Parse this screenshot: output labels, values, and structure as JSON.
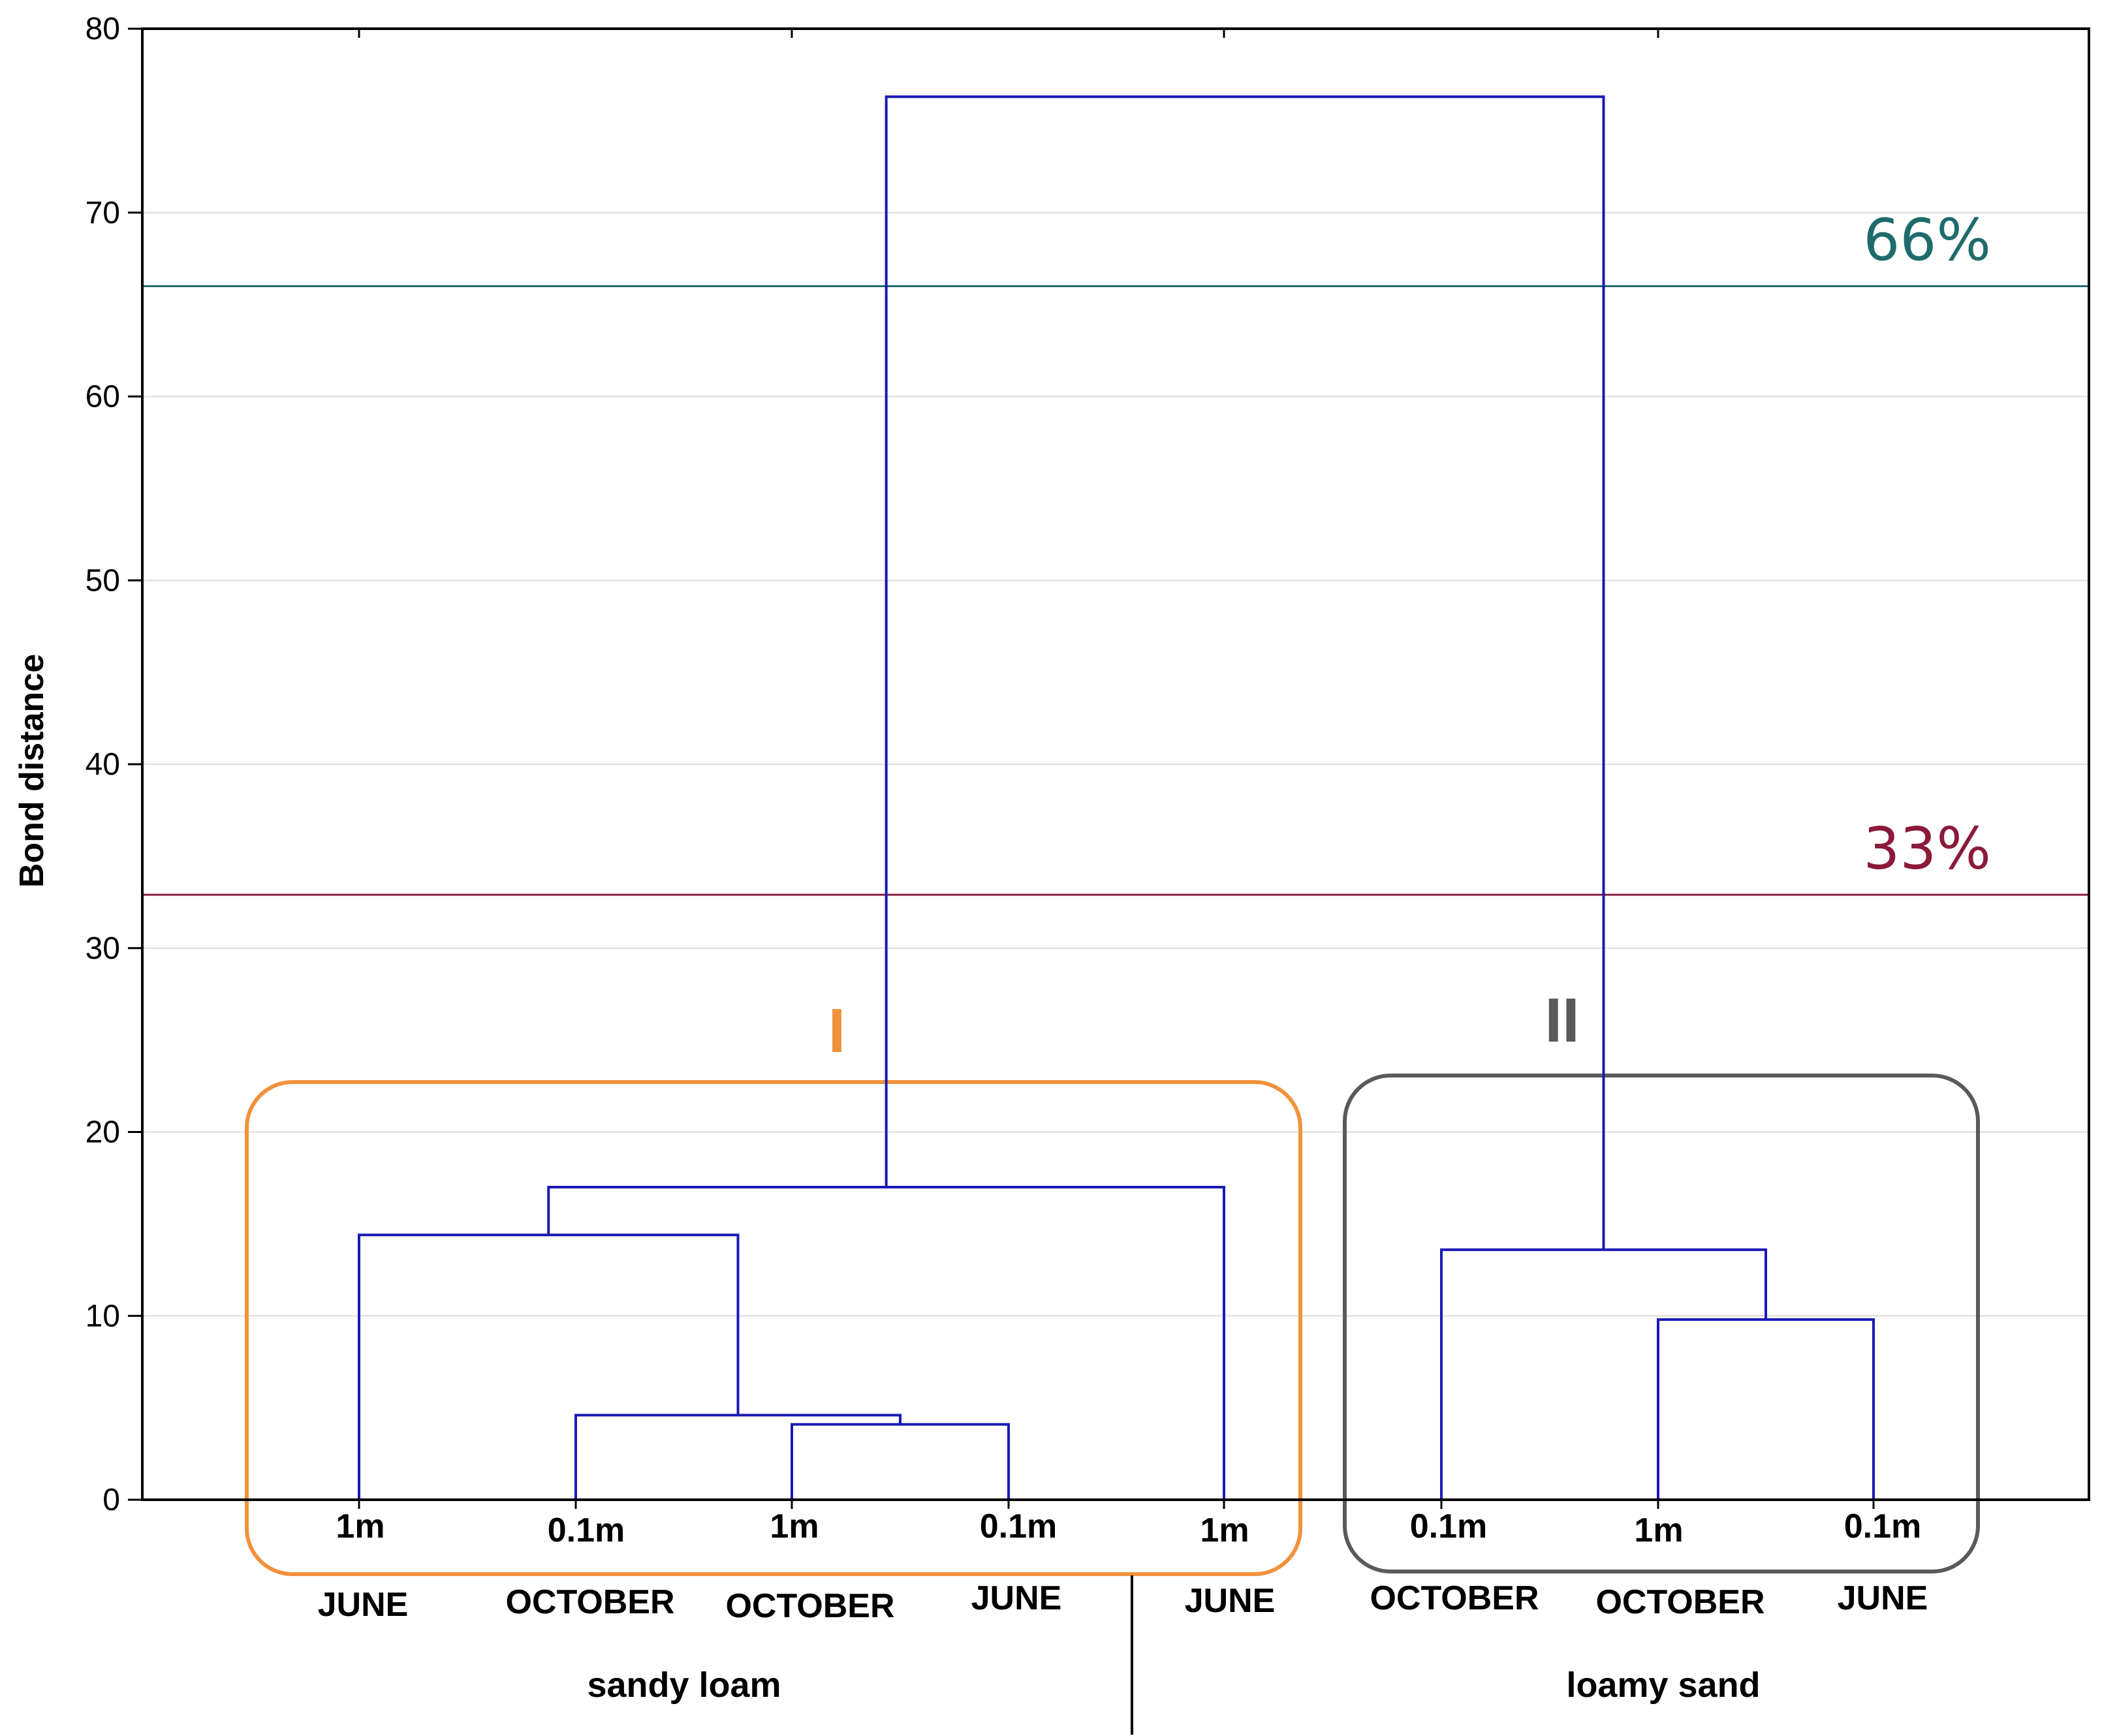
{
  "chart_data": {
    "type": "dendrogram",
    "ylabel": "Bond distance",
    "ylim": [
      0,
      80
    ],
    "yticks": [
      0,
      10,
      20,
      30,
      40,
      50,
      60,
      70,
      80
    ],
    "grid": true,
    "leaves": [
      {
        "depth": "1m",
        "month": "JUNE"
      },
      {
        "depth": "0.1m",
        "month": "OCTOBER"
      },
      {
        "depth": "1m",
        "month": "OCTOBER"
      },
      {
        "depth": "0.1m",
        "month": "JUNE"
      },
      {
        "depth": "1m",
        "month": "JUNE"
      },
      {
        "depth": "0.1m",
        "month": "OCTOBER"
      },
      {
        "depth": "1m",
        "month": "OCTOBER"
      },
      {
        "depth": "0.1m",
        "month": "JUNE"
      }
    ],
    "merges": [
      {
        "left": "L3",
        "right": "L4",
        "height": 4.1
      },
      {
        "left": "L2",
        "right": "M1",
        "height": 4.6
      },
      {
        "left": "L7",
        "right": "L8",
        "height": 9.8
      },
      {
        "left": "L6",
        "right": "M3",
        "height": 13.6
      },
      {
        "left": "L1",
        "right": "M2",
        "height": 14.4
      },
      {
        "left": "M5",
        "right": "L5",
        "height": 17.0
      },
      {
        "left": "M6",
        "right": "M4",
        "height": 76.3
      }
    ],
    "thresholds": [
      {
        "label": "66%",
        "value": 66,
        "color": "#1f6b6b"
      },
      {
        "label": "33%",
        "value": 32.9,
        "color": "#8b1a3a"
      }
    ],
    "clusters": [
      {
        "label": "I",
        "color": "#f0923c",
        "leaves": [
          1,
          2,
          3,
          4,
          5
        ]
      },
      {
        "label": "II",
        "color": "#5a5a5a",
        "leaves": [
          6,
          7,
          8
        ]
      }
    ],
    "groups": [
      {
        "label": "sandy loam",
        "leaves": [
          1,
          2,
          3,
          4,
          5
        ]
      },
      {
        "label": "loamy sand",
        "leaves": [
          6,
          7,
          8
        ]
      }
    ],
    "line_color": "#1a1ab4"
  }
}
